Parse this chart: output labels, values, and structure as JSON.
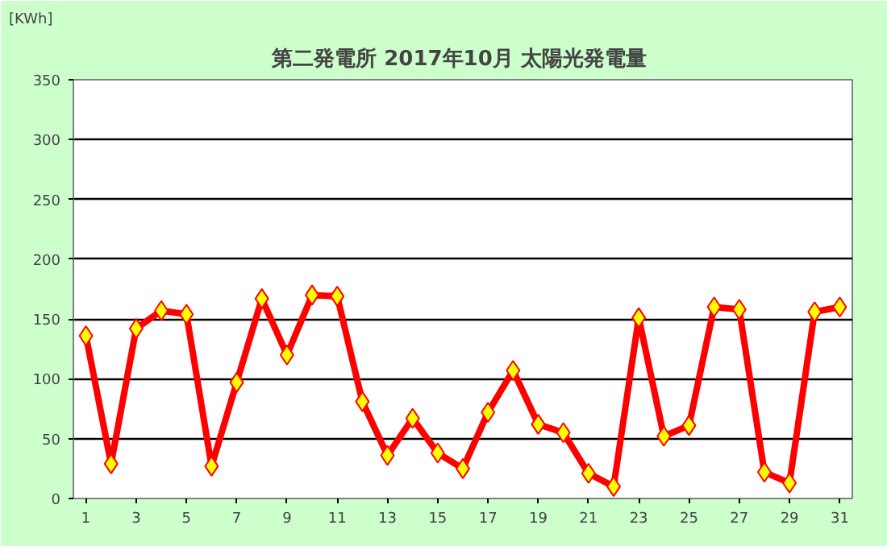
{
  "chart_data": {
    "type": "line",
    "title": "第二発電所  2017年10月 太陽光発電量",
    "ylabel": "[KWh]",
    "x": [
      1,
      2,
      3,
      4,
      5,
      6,
      7,
      8,
      9,
      10,
      11,
      12,
      13,
      14,
      15,
      16,
      17,
      18,
      19,
      20,
      21,
      22,
      23,
      24,
      25,
      26,
      27,
      28,
      29,
      30,
      31
    ],
    "series": [
      {
        "color": "#ff0000",
        "values": [
          136,
          29,
          142,
          157,
          154,
          27,
          97,
          167,
          120,
          170,
          169,
          81,
          36,
          67,
          38,
          25,
          72,
          107,
          62,
          55,
          21,
          10,
          151,
          52,
          61,
          160,
          158,
          22,
          13,
          156,
          160
        ]
      }
    ],
    "xlim": [
      0.5,
      31.5
    ],
    "xticks": [
      1,
      3,
      5,
      7,
      9,
      11,
      13,
      15,
      17,
      19,
      21,
      23,
      25,
      27,
      29,
      31
    ],
    "ylim": [
      0,
      350
    ],
    "yticks": [
      0,
      50,
      100,
      150,
      200,
      250,
      300,
      350
    ],
    "grid": "y",
    "marker": "diamond",
    "line_style": "solid"
  }
}
